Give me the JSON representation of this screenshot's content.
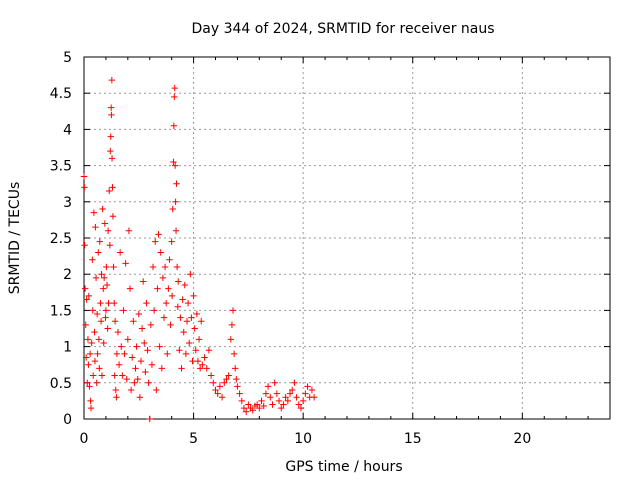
{
  "chart_data": {
    "type": "scatter",
    "title": "Day 344 of 2024, SRMTID for receiver naus",
    "xlabel": "GPS time / hours",
    "ylabel": "SRMTID / TECUs",
    "xlim": [
      0,
      24
    ],
    "ylim": [
      0,
      5
    ],
    "x_ticks": [
      0,
      5,
      10,
      15,
      20
    ],
    "y_ticks": [
      0,
      0.5,
      1,
      1.5,
      2,
      2.5,
      3,
      3.5,
      4,
      4.5,
      5
    ],
    "x_tick_labels": [
      "0",
      "5",
      "10",
      "15",
      "20"
    ],
    "y_tick_labels": [
      "0",
      "0.5",
      "1",
      "1.5",
      "2",
      "2.5",
      "3",
      "3.5",
      "4",
      "4.5",
      "5"
    ],
    "grid": true,
    "marker": "plus",
    "color": "#ff0000",
    "series": [
      {
        "name": "SRMTID",
        "points": [
          [
            0.0,
            3.35
          ],
          [
            0.02,
            3.2
          ],
          [
            0.03,
            2.4
          ],
          [
            0.05,
            1.8
          ],
          [
            0.08,
            1.3
          ],
          [
            0.1,
            0.85
          ],
          [
            0.12,
            1.65
          ],
          [
            0.15,
            0.5
          ],
          [
            0.18,
            1.1
          ],
          [
            0.2,
            0.75
          ],
          [
            0.22,
            1.7
          ],
          [
            0.25,
            0.45
          ],
          [
            0.28,
            0.9
          ],
          [
            0.3,
            0.25
          ],
          [
            0.32,
            0.15
          ],
          [
            0.35,
            1.05
          ],
          [
            0.38,
            2.2
          ],
          [
            0.4,
            1.5
          ],
          [
            0.42,
            0.6
          ],
          [
            0.45,
            2.85
          ],
          [
            0.48,
            1.2
          ],
          [
            0.5,
            0.8
          ],
          [
            0.52,
            2.65
          ],
          [
            0.55,
            1.95
          ],
          [
            0.58,
            0.5
          ],
          [
            0.6,
            1.45
          ],
          [
            0.62,
            0.9
          ],
          [
            0.65,
            2.3
          ],
          [
            0.68,
            1.1
          ],
          [
            0.7,
            0.7
          ],
          [
            0.72,
            2.45
          ],
          [
            0.75,
            1.6
          ],
          [
            0.78,
            1.35
          ],
          [
            0.8,
            2.0
          ],
          [
            0.82,
            0.6
          ],
          [
            0.85,
            2.9
          ],
          [
            0.88,
            1.8
          ],
          [
            0.9,
            1.05
          ],
          [
            0.92,
            1.95
          ],
          [
            0.95,
            2.7
          ],
          [
            0.98,
            1.4
          ],
          [
            1.0,
            1.5
          ],
          [
            1.02,
            2.1
          ],
          [
            1.05,
            1.85
          ],
          [
            1.08,
            1.25
          ],
          [
            1.1,
            2.6
          ],
          [
            1.12,
            1.6
          ],
          [
            1.15,
            3.15
          ],
          [
            1.18,
            2.4
          ],
          [
            1.2,
            3.7
          ],
          [
            1.22,
            3.9
          ],
          [
            1.24,
            4.3
          ],
          [
            1.25,
            4.2
          ],
          [
            1.27,
            4.68
          ],
          [
            1.28,
            3.6
          ],
          [
            1.3,
            3.2
          ],
          [
            1.32,
            2.8
          ],
          [
            1.35,
            2.1
          ],
          [
            1.38,
            1.6
          ],
          [
            1.4,
            0.6
          ],
          [
            1.42,
            1.35
          ],
          [
            1.45,
            0.4
          ],
          [
            1.48,
            0.3
          ],
          [
            1.5,
            0.9
          ],
          [
            1.55,
            1.2
          ],
          [
            1.6,
            0.75
          ],
          [
            1.65,
            2.3
          ],
          [
            1.7,
            1.0
          ],
          [
            1.75,
            0.6
          ],
          [
            1.8,
            1.5
          ],
          [
            1.85,
            0.9
          ],
          [
            1.9,
            2.15
          ],
          [
            1.95,
            0.55
          ],
          [
            2.0,
            1.1
          ],
          [
            2.05,
            2.6
          ],
          [
            2.1,
            1.8
          ],
          [
            2.15,
            0.4
          ],
          [
            2.2,
            0.85
          ],
          [
            2.25,
            1.35
          ],
          [
            2.3,
            0.5
          ],
          [
            2.35,
            0.7
          ],
          [
            2.4,
            1.0
          ],
          [
            2.45,
            0.55
          ],
          [
            2.5,
            1.45
          ],
          [
            2.55,
            0.3
          ],
          [
            2.6,
            0.8
          ],
          [
            2.65,
            1.25
          ],
          [
            2.7,
            1.9
          ],
          [
            2.75,
            1.05
          ],
          [
            2.8,
            0.65
          ],
          [
            2.85,
            1.6
          ],
          [
            2.9,
            0.95
          ],
          [
            2.95,
            0.5
          ],
          [
            3.0,
            0.0
          ],
          [
            3.05,
            1.3
          ],
          [
            3.1,
            0.75
          ],
          [
            3.15,
            2.1
          ],
          [
            3.2,
            1.5
          ],
          [
            3.25,
            2.45
          ],
          [
            3.3,
            0.4
          ],
          [
            3.35,
            1.8
          ],
          [
            3.4,
            2.55
          ],
          [
            3.45,
            1.0
          ],
          [
            3.5,
            2.3
          ],
          [
            3.55,
            0.7
          ],
          [
            3.6,
            1.95
          ],
          [
            3.65,
            1.4
          ],
          [
            3.7,
            2.1
          ],
          [
            3.75,
            1.6
          ],
          [
            3.8,
            0.9
          ],
          [
            3.85,
            1.8
          ],
          [
            3.9,
            2.2
          ],
          [
            3.95,
            1.3
          ],
          [
            4.0,
            2.45
          ],
          [
            4.02,
            1.7
          ],
          [
            4.05,
            2.9
          ],
          [
            4.08,
            3.55
          ],
          [
            4.1,
            4.05
          ],
          [
            4.12,
            4.45
          ],
          [
            4.14,
            4.57
          ],
          [
            4.16,
            3.5
          ],
          [
            4.18,
            3.0
          ],
          [
            4.2,
            2.6
          ],
          [
            4.22,
            3.25
          ],
          [
            4.25,
            2.1
          ],
          [
            4.28,
            1.55
          ],
          [
            4.3,
            1.9
          ],
          [
            4.35,
            0.95
          ],
          [
            4.4,
            1.4
          ],
          [
            4.45,
            0.7
          ],
          [
            4.5,
            1.65
          ],
          [
            4.55,
            1.2
          ],
          [
            4.6,
            1.85
          ],
          [
            4.65,
            0.9
          ],
          [
            4.7,
            1.35
          ],
          [
            4.75,
            1.6
          ],
          [
            4.8,
            1.05
          ],
          [
            4.85,
            2.0
          ],
          [
            4.9,
            1.4
          ],
          [
            4.95,
            0.8
          ],
          [
            5.0,
            1.7
          ],
          [
            5.05,
            1.25
          ],
          [
            5.1,
            0.95
          ],
          [
            5.15,
            1.45
          ],
          [
            5.2,
            0.8
          ],
          [
            5.25,
            1.1
          ],
          [
            5.3,
            0.7
          ],
          [
            5.35,
            1.35
          ],
          [
            5.4,
            0.75
          ],
          [
            5.5,
            0.85
          ],
          [
            5.6,
            0.7
          ],
          [
            5.7,
            0.95
          ],
          [
            5.8,
            0.6
          ],
          [
            5.9,
            0.5
          ],
          [
            6.0,
            0.4
          ],
          [
            6.1,
            0.35
          ],
          [
            6.2,
            0.45
          ],
          [
            6.3,
            0.3
          ],
          [
            6.4,
            0.5
          ],
          [
            6.5,
            0.55
          ],
          [
            6.6,
            0.6
          ],
          [
            6.7,
            1.1
          ],
          [
            6.75,
            1.3
          ],
          [
            6.8,
            1.5
          ],
          [
            6.85,
            0.9
          ],
          [
            6.9,
            0.7
          ],
          [
            6.95,
            0.55
          ],
          [
            7.0,
            0.45
          ],
          [
            7.1,
            0.35
          ],
          [
            7.2,
            0.25
          ],
          [
            7.3,
            0.15
          ],
          [
            7.4,
            0.1
          ],
          [
            7.5,
            0.2
          ],
          [
            7.6,
            0.15
          ],
          [
            7.7,
            0.12
          ],
          [
            7.8,
            0.18
          ],
          [
            7.9,
            0.2
          ],
          [
            8.0,
            0.15
          ],
          [
            8.1,
            0.25
          ],
          [
            8.2,
            0.18
          ],
          [
            8.3,
            0.35
          ],
          [
            8.4,
            0.45
          ],
          [
            8.5,
            0.3
          ],
          [
            8.6,
            0.2
          ],
          [
            8.7,
            0.5
          ],
          [
            8.8,
            0.35
          ],
          [
            8.9,
            0.25
          ],
          [
            9.0,
            0.15
          ],
          [
            9.1,
            0.2
          ],
          [
            9.2,
            0.3
          ],
          [
            9.3,
            0.25
          ],
          [
            9.4,
            0.35
          ],
          [
            9.5,
            0.4
          ],
          [
            9.6,
            0.5
          ],
          [
            9.7,
            0.3
          ],
          [
            9.8,
            0.2
          ],
          [
            9.9,
            0.15
          ],
          [
            10.0,
            0.25
          ],
          [
            10.1,
            0.35
          ],
          [
            10.2,
            0.45
          ],
          [
            10.3,
            0.3
          ],
          [
            10.4,
            0.4
          ],
          [
            10.5,
            0.3
          ]
        ]
      }
    ]
  }
}
